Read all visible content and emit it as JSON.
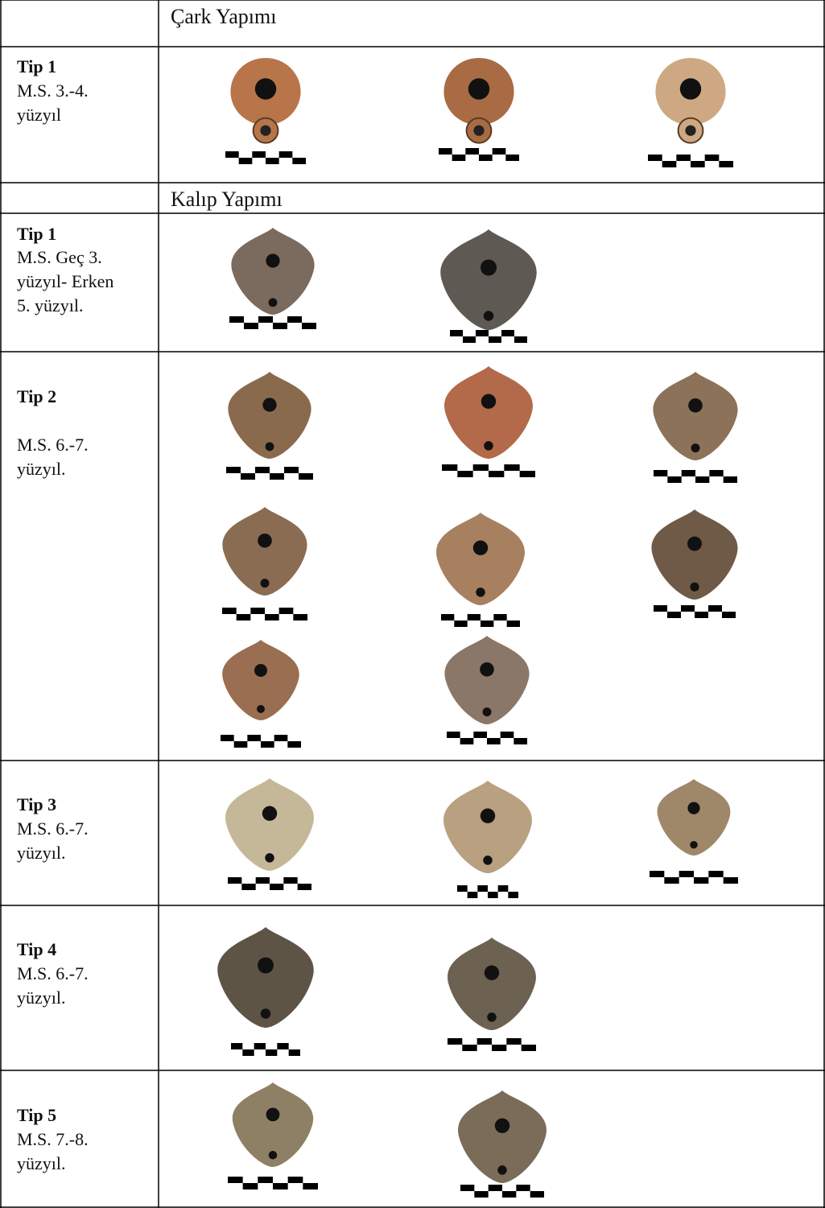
{
  "sections": [
    {
      "title": "Çark Yapımı",
      "rows": [
        {
          "type": "Tip 1",
          "date_lines": [
            "M.S. 3.-4.",
            "yüzyıl"
          ]
        }
      ]
    },
    {
      "title": "Kalıp Yapımı",
      "rows": [
        {
          "type": "Tip 1",
          "date_lines": [
            "M.S. Geç 3.",
            "yüzyıl- Erken",
            "5. yüzyıl."
          ]
        },
        {
          "type": "Tip 2",
          "date_lines": [
            "M.S. 6.-7.",
            "yüzyıl."
          ]
        },
        {
          "type": "Tip 3",
          "date_lines": [
            "M.S. 6.-7.",
            "yüzyıl."
          ]
        },
        {
          "type": "Tip 4",
          "date_lines": [
            "M.S. 6.-7.",
            "yüzyıl."
          ]
        },
        {
          "type": "Tip 5",
          "date_lines": [
            "M.S. 7.-8.",
            "yüzyıl."
          ]
        }
      ]
    }
  ]
}
